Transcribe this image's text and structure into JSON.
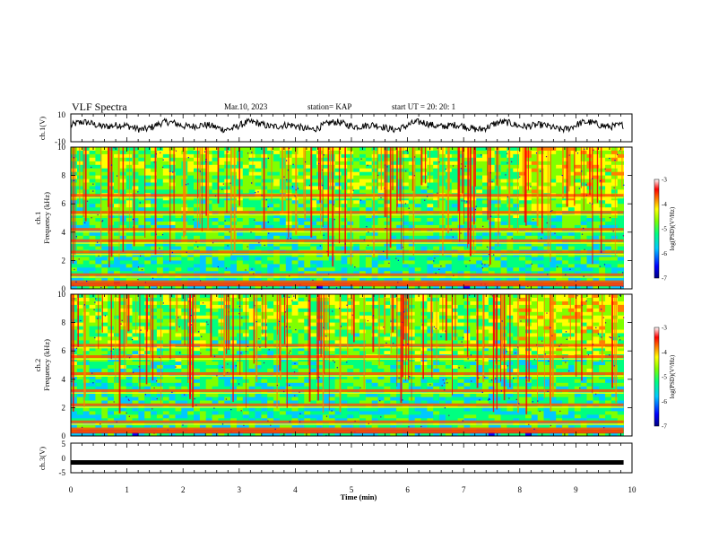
{
  "header": {
    "title": "VLF Spectra",
    "date": "Mar.10, 2023",
    "station": "station= KAP",
    "start": "start  UT  =   20: 20: 1"
  },
  "colors": {
    "colormap": [
      "#000080",
      "#0000ff",
      "#00c8ff",
      "#00ff80",
      "#80ff00",
      "#ffff00",
      "#ff8000",
      "#ff0000",
      "#ffffff"
    ],
    "trace": "#000000"
  },
  "chart_data": [
    {
      "type": "line",
      "panel": "ch1-waveform",
      "ylabel": "ch.1(V)",
      "ylim": [
        -10,
        10
      ],
      "ytick_labels": [
        "-10",
        "10"
      ],
      "xlim": [
        0,
        9.85
      ],
      "description_values": "noisy waveform oscillating mostly between -4 and 6 V"
    },
    {
      "type": "heatmap",
      "panel": "ch1-spectrogram",
      "ylabel_line1": "ch.1",
      "ylabel_line2": "Frequency (kHz)",
      "ylim": [
        0,
        10
      ],
      "ytick_labels": [
        "0",
        "2",
        "4",
        "6",
        "8",
        "10"
      ],
      "xlim": [
        0,
        9.85
      ],
      "colorbar": {
        "label": "log(PSD)(V²/Hz)",
        "range": [
          -7,
          -3
        ],
        "tick_labels": [
          "-3",
          "-4",
          "-5",
          "-6",
          "-7"
        ]
      },
      "bands_khz": [
        0.5,
        1.0,
        2.6,
        3.4,
        4.2,
        5.4,
        6.6
      ]
    },
    {
      "type": "heatmap",
      "panel": "ch2-spectrogram",
      "ylabel_line1": "ch.2",
      "ylabel_line2": "Frequency (kHz)",
      "ylim": [
        0,
        10
      ],
      "ytick_labels": [
        "0",
        "2",
        "4",
        "6",
        "8",
        "10"
      ],
      "xlim": [
        0,
        9.85
      ],
      "colorbar": {
        "label": "log(PSD)(V²/Hz)",
        "range": [
          -7,
          -3
        ],
        "tick_labels": [
          "-3",
          "-4",
          "-5",
          "-6",
          "-7"
        ]
      },
      "bands_khz": [
        0.5,
        1.0,
        2.2,
        3.2,
        4.4,
        5.6,
        6.4
      ]
    },
    {
      "type": "line",
      "panel": "ch3-waveform",
      "ylabel": "ch.3(V)",
      "ylim": [
        -5,
        5
      ],
      "ytick_labels": [
        "-5",
        "0",
        "5"
      ],
      "xlim": [
        0,
        9.85
      ],
      "value": -1.5
    }
  ],
  "xaxis": {
    "label": "Time (min)",
    "tick_labels": [
      "0",
      "1",
      "2",
      "3",
      "4",
      "5",
      "6",
      "7",
      "8",
      "9",
      "10"
    ],
    "range": [
      0,
      10
    ]
  }
}
